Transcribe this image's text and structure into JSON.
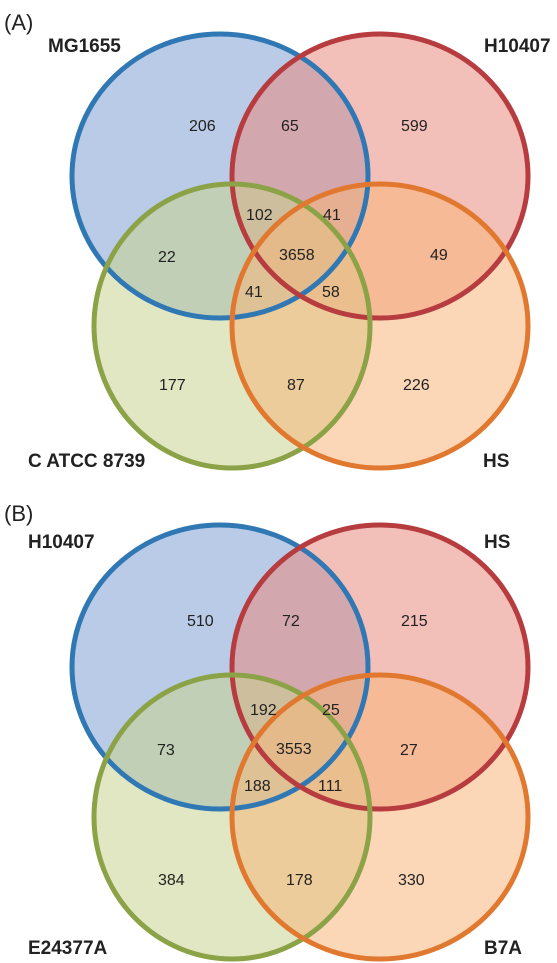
{
  "panels": {
    "a": {
      "label": "(A)",
      "sets": {
        "top_left": {
          "name": "MG1655",
          "fill": "#7fa0d2",
          "stroke": "#2f78b4"
        },
        "top_right": {
          "name": "H10407",
          "fill": "#e98a80",
          "stroke": "#b73c3f"
        },
        "bottom_left": {
          "name": "C ATCC 8739",
          "fill": "#c8d48f",
          "stroke": "#8ca246"
        },
        "bottom_right": {
          "name": "HS",
          "fill": "#f8b67c",
          "stroke": "#e1782f"
        }
      },
      "regions": {
        "tl_only": "206",
        "tl_tr": "65",
        "tr_only": "599",
        "tl_tr_bl": "102",
        "tl_tr_br": "41",
        "tl_bl": "22",
        "all": "3658",
        "tr_br": "49",
        "tl_bl_br": "41",
        "tr_bl_br": "58",
        "bl_only": "177",
        "bl_br": "87",
        "br_only": "226"
      }
    },
    "b": {
      "label": "(B)",
      "sets": {
        "top_left": {
          "name": "H10407",
          "fill": "#7fa0d2",
          "stroke": "#2f78b4"
        },
        "top_right": {
          "name": "HS",
          "fill": "#e98a80",
          "stroke": "#b73c3f"
        },
        "bottom_left": {
          "name": "E24377A",
          "fill": "#c8d48f",
          "stroke": "#8ca246"
        },
        "bottom_right": {
          "name": "B7A",
          "fill": "#f8b67c",
          "stroke": "#e1782f"
        }
      },
      "regions": {
        "tl_only": "510",
        "tl_tr": "72",
        "tr_only": "215",
        "tl_tr_bl": "192",
        "tl_tr_br": "25",
        "tl_bl": "73",
        "all": "3553",
        "tr_br": "27",
        "tl_bl_br": "188",
        "tr_bl_br": "111",
        "bl_only": "384",
        "bl_br": "178",
        "br_only": "330"
      }
    }
  }
}
